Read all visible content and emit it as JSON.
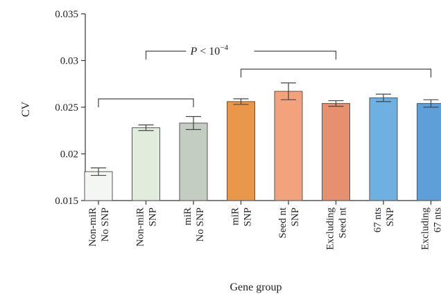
{
  "chart_data": {
    "type": "bar",
    "title": "",
    "xlabel": "Gene group",
    "ylabel": "CV",
    "ylim": [
      0.015,
      0.035
    ],
    "yticks": [
      "0.015",
      "0.02",
      "0.025",
      "0.03",
      "0.035"
    ],
    "grid": false,
    "categories": [
      [
        "Non-miR",
        "No SNP"
      ],
      [
        "Non-miR",
        "SNP"
      ],
      [
        "miR",
        "No SNP"
      ],
      [
        "miR",
        "SNP"
      ],
      [
        "Seed nt",
        "SNP"
      ],
      [
        "Excluding",
        "Seed nt"
      ],
      [
        "67 nts",
        "SNP"
      ],
      [
        "Excluding",
        "67 nts"
      ]
    ],
    "values": [
      0.0181,
      0.0228,
      0.0233,
      0.0256,
      0.0267,
      0.0254,
      0.026,
      0.0254
    ],
    "errors": [
      0.0004,
      0.0003,
      0.0007,
      0.0003,
      0.0009,
      0.0003,
      0.0004,
      0.0004
    ],
    "colors": [
      "#f4f6f4",
      "#e1ecdd",
      "#c4cdc2",
      "#e8974b",
      "#f3a27e",
      "#e6906f",
      "#6fb0e2",
      "#5e9fd9"
    ],
    "annotations": {
      "pvalue_text": "P < 10",
      "pvalue_exp": "−4",
      "left_bracket": {
        "from": 0,
        "to": 2
      },
      "right_bracket": {
        "from": 3,
        "to": 7
      },
      "top_bracket": {
        "from": 1,
        "to": 5
      }
    }
  }
}
